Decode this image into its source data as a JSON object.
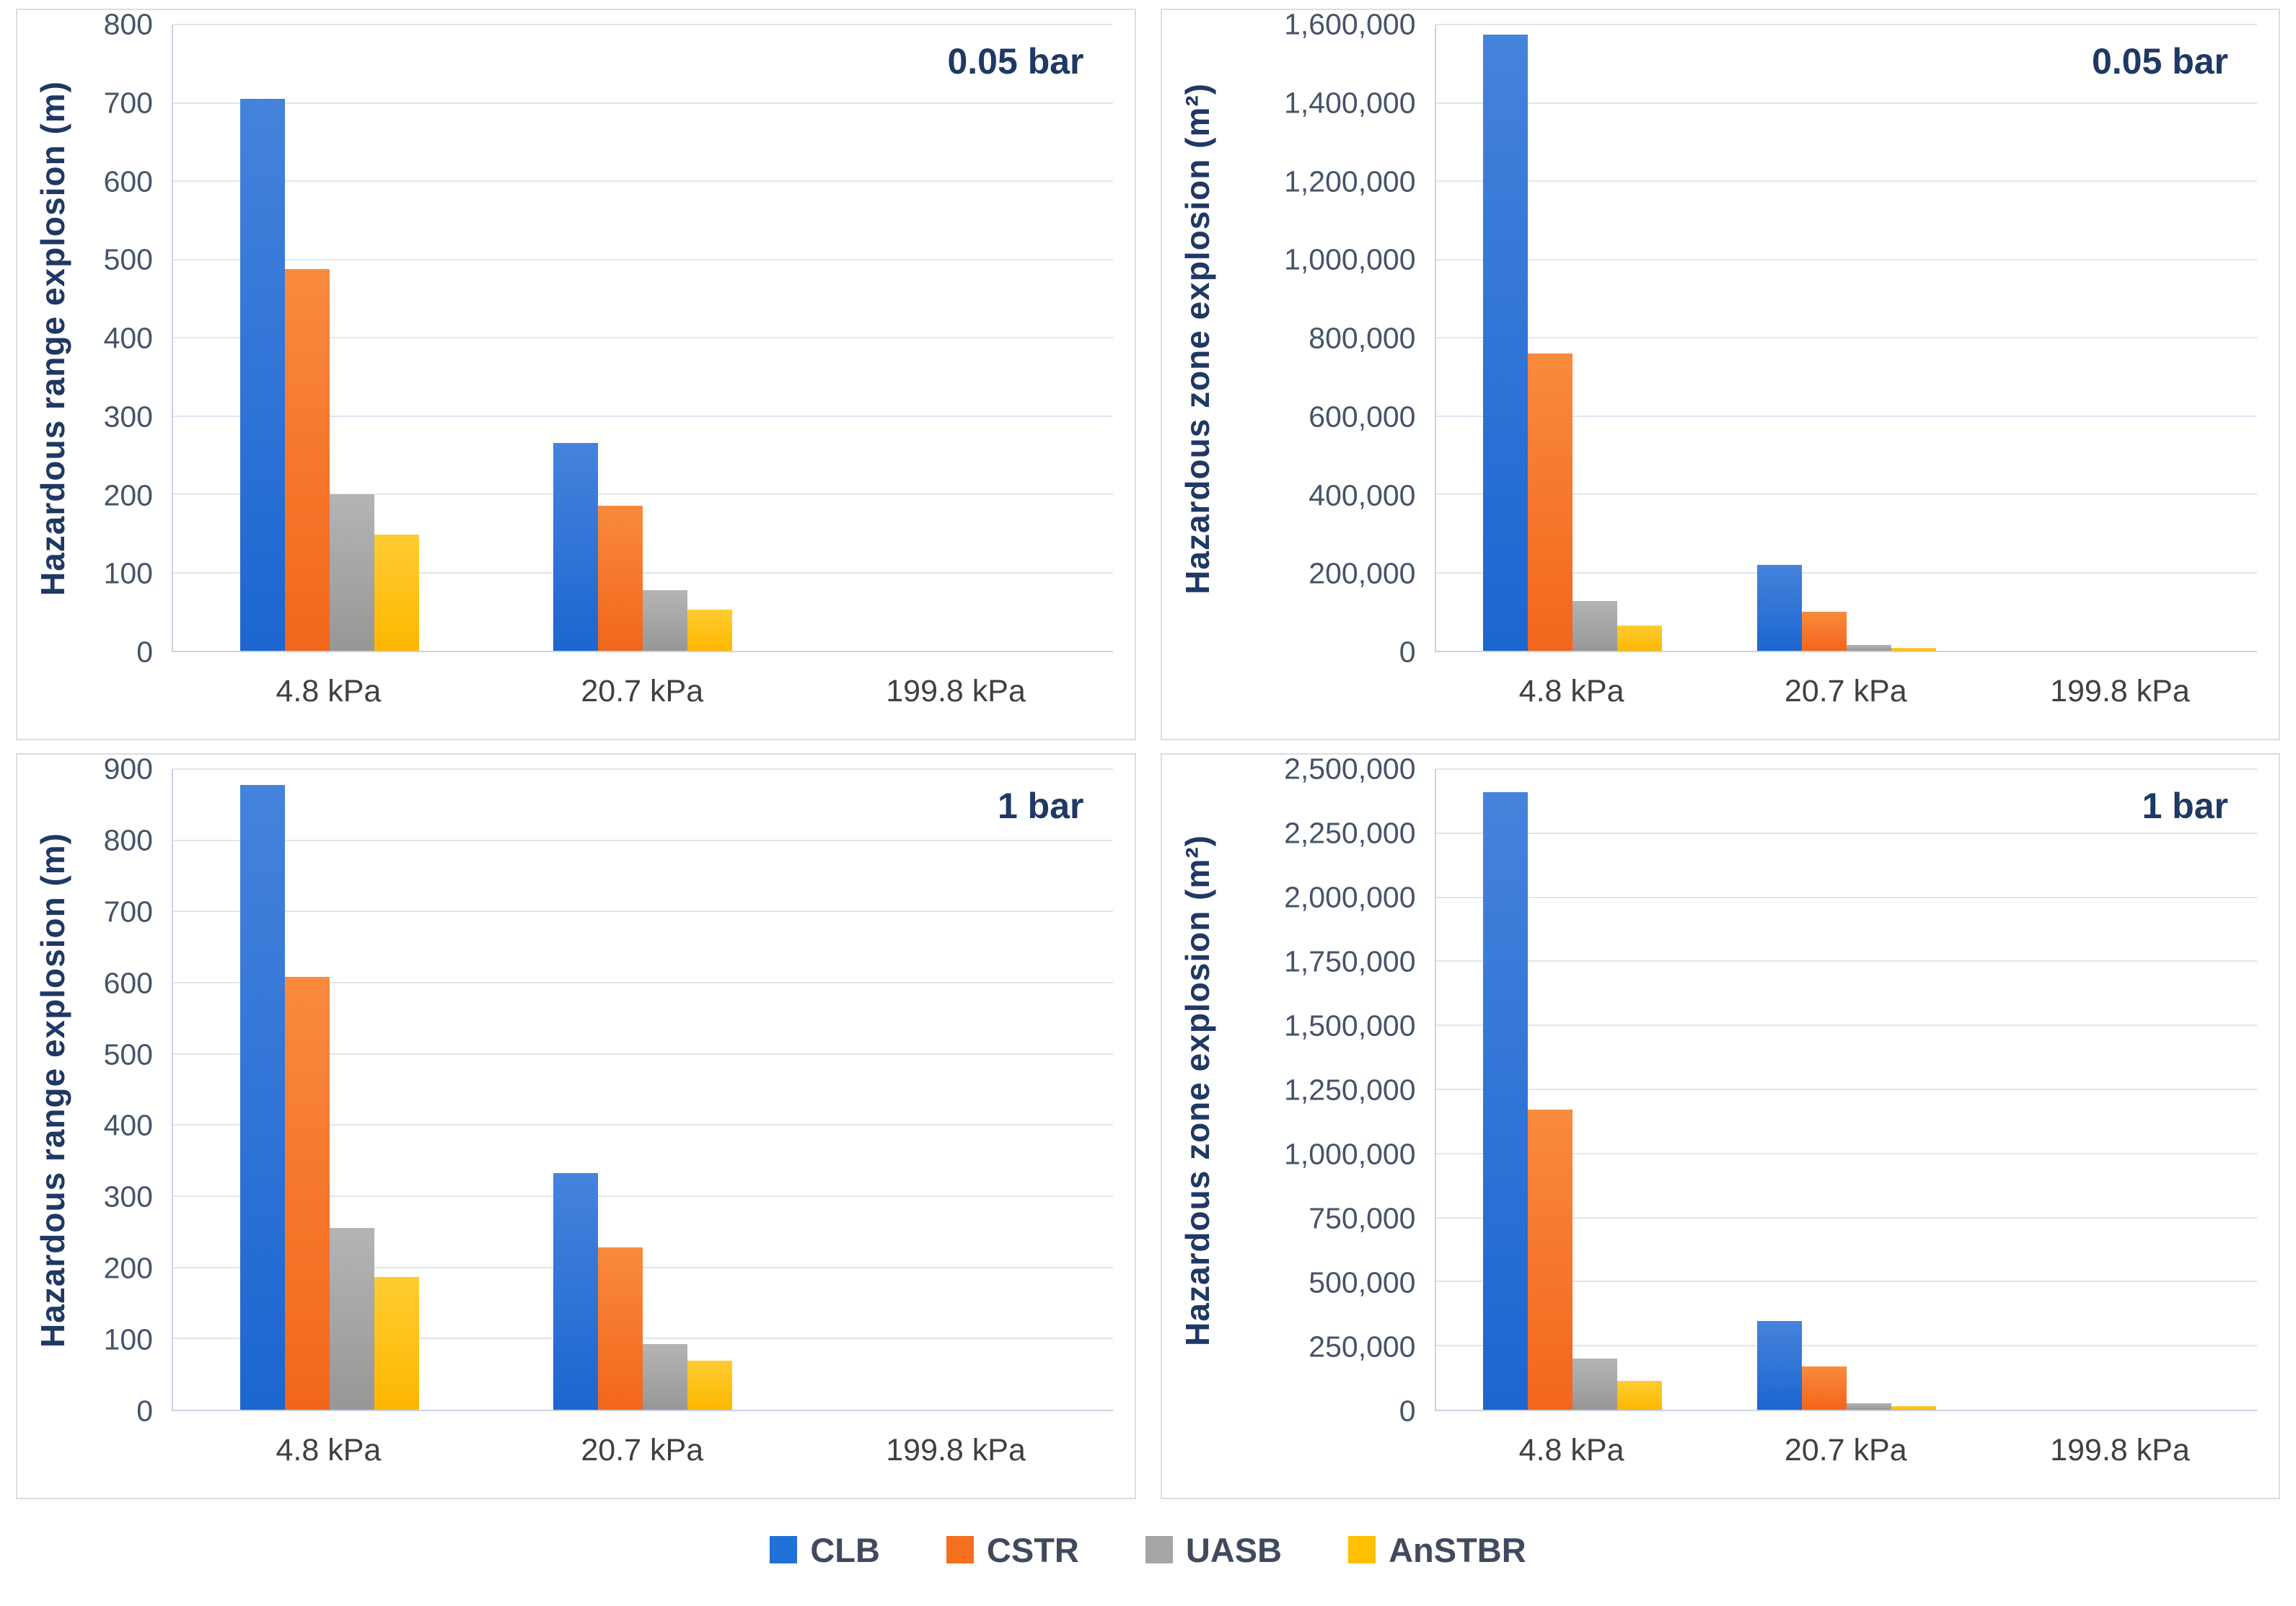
{
  "legend": {
    "items": [
      {
        "label": "CLB",
        "color": "#2170d7"
      },
      {
        "label": "CSTR",
        "color": "#f4701f"
      },
      {
        "label": "UASB",
        "color": "#a6a6a6"
      },
      {
        "label": "AnSTBR",
        "color": "#ffc000"
      }
    ]
  },
  "series_styles": [
    {
      "name": "CLB",
      "color_top": "#4583dc",
      "color_bottom": "#1c66d0"
    },
    {
      "name": "CSTR",
      "color_top": "#f98a3c",
      "color_bottom": "#f2661c"
    },
    {
      "name": "UASB",
      "color_top": "#b4b4b4",
      "color_bottom": "#979797"
    },
    {
      "name": "AnSTBR",
      "color_top": "#ffcc32",
      "color_bottom": "#feb700"
    }
  ],
  "colors": {
    "gridline": "#e0e6f0",
    "axis_line": "#c9d2e0",
    "tick_label": "#44546a",
    "axis_title": "#1f3864",
    "annotation": "#1f3864",
    "panel_border": "#d9dde5"
  },
  "chart_data": [
    {
      "type": "bar",
      "position": "top-left",
      "annotation": "0.05 bar",
      "ylabel": "Hazardous range explosion (m)",
      "xlabel": "",
      "ylim": [
        0,
        800
      ],
      "y_step": 100,
      "grid": true,
      "legend_position": "bottom-shared",
      "categories": [
        "4.8 kPa",
        "20.7 kPa",
        "199.8 kPa"
      ],
      "series": [
        {
          "name": "CLB",
          "values": [
            705,
            265,
            0
          ]
        },
        {
          "name": "CSTR",
          "values": [
            488,
            185,
            0
          ]
        },
        {
          "name": "UASB",
          "values": [
            200,
            77,
            0
          ]
        },
        {
          "name": "AnSTBR",
          "values": [
            148,
            53,
            0
          ]
        }
      ]
    },
    {
      "type": "bar",
      "position": "top-right",
      "annotation": "0.05 bar",
      "ylabel": "Hazardous zone explosion (m²)",
      "xlabel": "",
      "ylim": [
        0,
        1600000
      ],
      "y_step": 200000,
      "grid": true,
      "legend_position": "bottom-shared",
      "categories": [
        "4.8 kPa",
        "20.7 kPa",
        "199.8 kPa"
      ],
      "series": [
        {
          "name": "CLB",
          "values": [
            1575000,
            220000,
            0
          ]
        },
        {
          "name": "CSTR",
          "values": [
            760000,
            100000,
            0
          ]
        },
        {
          "name": "UASB",
          "values": [
            128000,
            14000,
            0
          ]
        },
        {
          "name": "AnSTBR",
          "values": [
            64000,
            8000,
            0
          ]
        }
      ]
    },
    {
      "type": "bar",
      "position": "bottom-left",
      "annotation": "1 bar",
      "ylabel": "Hazardous range explosion (m)",
      "xlabel": "",
      "ylim": [
        0,
        900
      ],
      "y_step": 100,
      "grid": true,
      "legend_position": "bottom-shared",
      "categories": [
        "4.8 kPa",
        "20.7 kPa",
        "199.8 kPa"
      ],
      "series": [
        {
          "name": "CLB",
          "values": [
            878,
            332,
            0
          ]
        },
        {
          "name": "CSTR",
          "values": [
            608,
            228,
            0
          ]
        },
        {
          "name": "UASB",
          "values": [
            255,
            92,
            0
          ]
        },
        {
          "name": "AnSTBR",
          "values": [
            187,
            69,
            0
          ]
        }
      ]
    },
    {
      "type": "bar",
      "position": "bottom-right",
      "annotation": "1 bar",
      "ylabel": "Hazardous zone explosion (m²)",
      "xlabel": "",
      "ylim": [
        0,
        2500000
      ],
      "y_step": 250000,
      "grid": true,
      "legend_position": "bottom-shared",
      "categories": [
        "4.8 kPa",
        "20.7 kPa",
        "199.8 kPa"
      ],
      "series": [
        {
          "name": "CLB",
          "values": [
            2410000,
            345000,
            0
          ]
        },
        {
          "name": "CSTR",
          "values": [
            1170000,
            170000,
            0
          ]
        },
        {
          "name": "UASB",
          "values": [
            200000,
            25000,
            0
          ]
        },
        {
          "name": "AnSTBR",
          "values": [
            112000,
            14000,
            0
          ]
        }
      ]
    }
  ]
}
